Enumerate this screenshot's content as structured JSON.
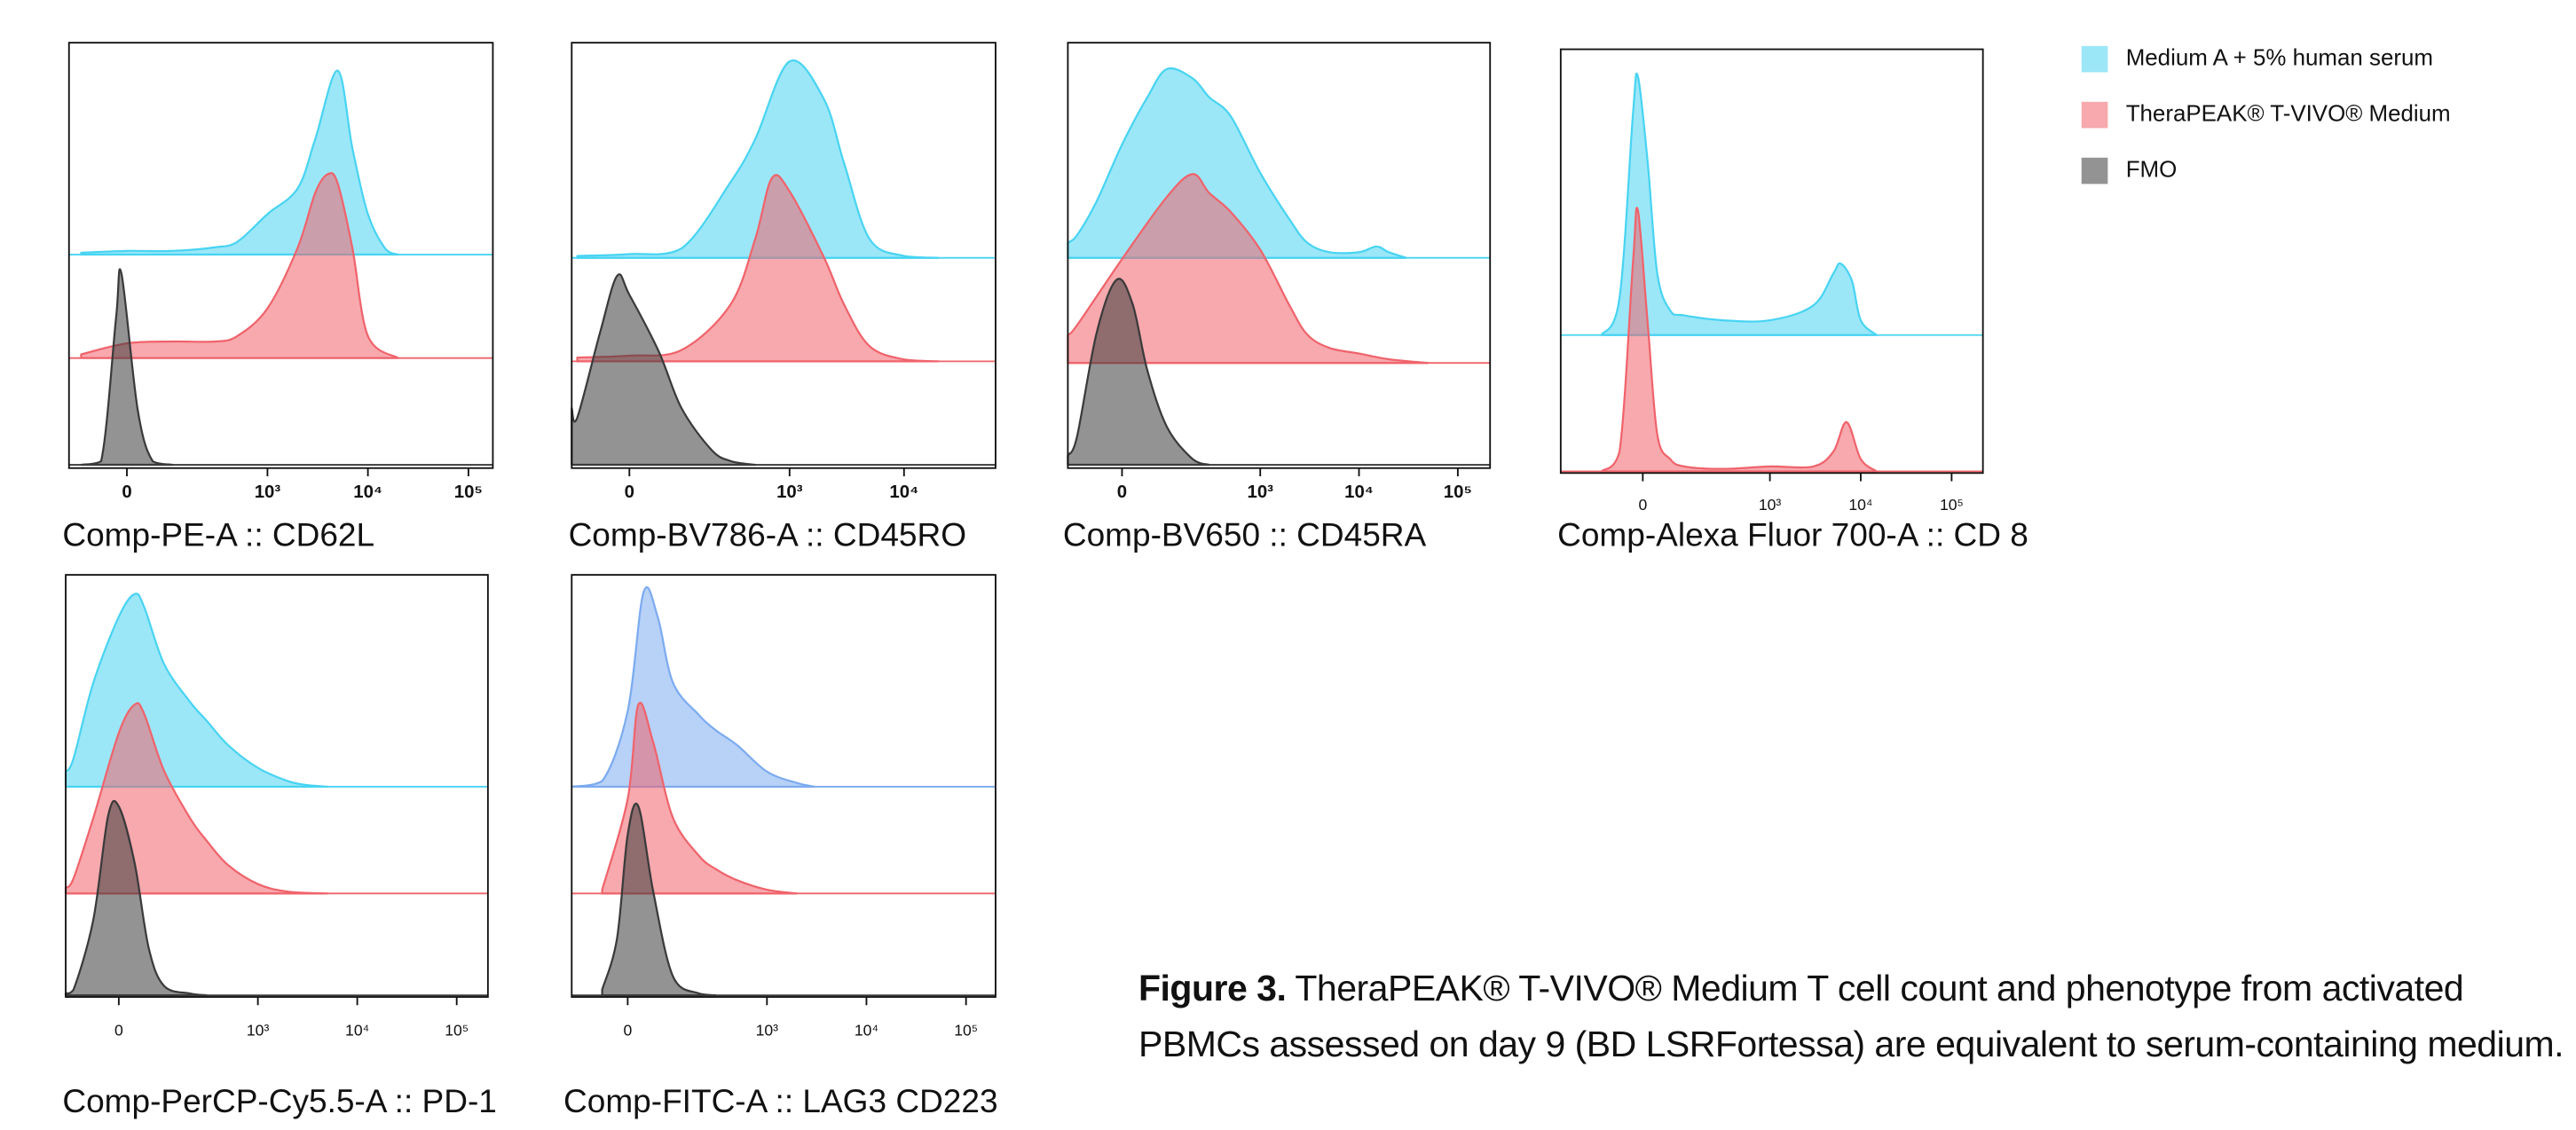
{
  "chart_data": [
    {
      "type": "density",
      "xlabel": "Comp-PE-A :: CD62L",
      "x_scale": "biexponential",
      "xlim": [
        -140,
        175000
      ],
      "ylim": [
        0,
        100
      ],
      "xticks": [
        0,
        {
          "value": 1000,
          "label": "10³"
        },
        {
          "value": 10000,
          "label": "10⁴"
        },
        {
          "value": 100000,
          "label": "10⁵"
        }
      ],
      "series": [
        {
          "color": "#48d4f2",
          "x": [
            -100,
            0,
            100,
            300,
            500,
            1000,
            2000,
            3000,
            5000,
            7000,
            10000,
            15000,
            20000
          ],
          "values": [
            1,
            2,
            2,
            4,
            7,
            22,
            36,
            63,
            100,
            58,
            22,
            3,
            0
          ]
        },
        {
          "color": "#f0636b",
          "x": [
            -100,
            0,
            100,
            300,
            500,
            1000,
            2000,
            3000,
            4000,
            5000,
            7000,
            10000,
            20000
          ],
          "values": [
            2,
            8,
            9,
            9,
            12,
            27,
            60,
            90,
            100,
            95,
            60,
            12,
            0
          ]
        },
        {
          "color": "#3a3a3a",
          "x": [
            -100,
            -50,
            -20,
            -10,
            20,
            50,
            100
          ],
          "values": [
            0,
            2,
            80,
            104,
            30,
            2,
            0
          ]
        }
      ]
    },
    {
      "type": "density",
      "xlabel": "Comp-BV786-A :: CD45RO",
      "x_scale": "biexponential",
      "xlim": [
        -115,
        63000
      ],
      "ylim": [
        0,
        100
      ],
      "xticks": [
        0,
        {
          "value": 1000,
          "label": "10³"
        },
        {
          "value": 10000,
          "label": "10⁴"
        }
      ],
      "series": [
        {
          "color": "#48d4f2",
          "x": [
            -100,
            0,
            100,
            300,
            500,
            1000,
            2000,
            3000,
            5000,
            10000,
            20000
          ],
          "values": [
            1,
            2,
            5,
            40,
            63,
            104,
            84,
            50,
            10,
            1,
            0
          ]
        },
        {
          "color": "#f0636b",
          "x": [
            -100,
            0,
            100,
            300,
            500,
            700,
            1000,
            2000,
            3000,
            5000,
            10000,
            20000
          ],
          "values": [
            2,
            3,
            6,
            30,
            65,
            97,
            90,
            55,
            30,
            8,
            1,
            0
          ]
        },
        {
          "color": "#3a3a3a",
          "x": [
            -115,
            -100,
            -50,
            -20,
            0,
            50,
            100,
            200,
            300,
            500
          ],
          "values": [
            30,
            25,
            70,
            100,
            90,
            60,
            30,
            8,
            2,
            0
          ]
        }
      ]
    },
    {
      "type": "density",
      "xlabel": "Comp-BV650 :: CD45RA",
      "x_scale": "biexponential",
      "xlim": [
        -130,
        212000
      ],
      "ylim": [
        0,
        100
      ],
      "xticks": [
        0,
        {
          "value": 1000,
          "label": "10³"
        },
        {
          "value": 10000,
          "label": "10⁴"
        },
        {
          "value": 100000,
          "label": "10⁵"
        }
      ],
      "series": [
        {
          "color": "#48d4f2",
          "x": [
            -130,
            -100,
            -50,
            0,
            50,
            100,
            200,
            300,
            500,
            1000,
            2000,
            3000,
            5000,
            10000,
            15000,
            20000,
            30000
          ],
          "values": [
            8,
            12,
            30,
            60,
            85,
            100,
            95,
            85,
            75,
            45,
            20,
            8,
            3,
            3,
            6,
            3,
            0
          ]
        },
        {
          "color": "#f0636b",
          "x": [
            -130,
            -100,
            0,
            100,
            200,
            300,
            500,
            1000,
            2000,
            3000,
            5000,
            10000,
            20000,
            50000
          ],
          "values": [
            15,
            20,
            55,
            88,
            100,
            90,
            80,
            60,
            30,
            15,
            8,
            5,
            2,
            0
          ]
        },
        {
          "color": "#3a3a3a",
          "x": [
            -130,
            -100,
            -50,
            -10,
            20,
            50,
            100,
            200,
            300
          ],
          "values": [
            5,
            15,
            70,
            98,
            85,
            50,
            20,
            3,
            0
          ]
        }
      ]
    },
    {
      "type": "density",
      "xlabel": "Comp-Alexa Fluor 700-A :: CD 8",
      "x_scale": "biexponential",
      "xlim": [
        -315,
        221000
      ],
      "ylim": [
        0,
        100
      ],
      "xticks": [
        0,
        {
          "value": 1000,
          "label": "10³"
        },
        {
          "value": 10000,
          "label": "10⁴"
        },
        {
          "value": 100000,
          "label": "10⁵"
        }
      ],
      "series": [
        {
          "color": "#48d4f2",
          "x": [
            -100,
            -50,
            -20,
            -10,
            10,
            30,
            60,
            100,
            300,
            1000,
            3000,
            5000,
            6000,
            8000,
            10000,
            15000
          ],
          "values": [
            0,
            15,
            90,
            105,
            70,
            25,
            10,
            8,
            6,
            6,
            12,
            25,
            29,
            22,
            6,
            0
          ]
        },
        {
          "color": "#f0636b",
          "x": [
            -100,
            -50,
            -20,
            -10,
            10,
            30,
            60,
            100,
            300,
            1000,
            3000,
            5000,
            7000,
            10000,
            15000
          ],
          "values": [
            0,
            8,
            85,
            106,
            60,
            15,
            5,
            2,
            1,
            2,
            2,
            8,
            20,
            5,
            0
          ]
        }
      ]
    },
    {
      "type": "density",
      "xlabel": "Comp-PerCP-Cy5.5-A :: PD-1",
      "x_scale": "biexponential",
      "xlim": [
        -125,
        206000
      ],
      "ylim": [
        0,
        100
      ],
      "xticks": [
        0,
        {
          "value": 1000,
          "label": "10³"
        },
        {
          "value": 10000,
          "label": "10⁴"
        },
        {
          "value": 100000,
          "label": "10⁵"
        }
      ],
      "series": [
        {
          "color": "#48d4f2",
          "x": [
            -125,
            -100,
            -50,
            0,
            30,
            50,
            100,
            200,
            300,
            500,
            1000,
            2000,
            3000,
            5000
          ],
          "values": [
            8,
            15,
            55,
            90,
            102,
            95,
            65,
            45,
            35,
            22,
            10,
            3,
            1,
            0
          ]
        },
        {
          "color": "#f0636b",
          "x": [
            -125,
            -100,
            -50,
            0,
            30,
            50,
            100,
            200,
            300,
            500,
            1000,
            2000,
            5000
          ],
          "values": [
            3,
            8,
            40,
            85,
            100,
            95,
            65,
            40,
            28,
            15,
            5,
            1,
            0
          ]
        },
        {
          "color": "#3a3a3a",
          "x": [
            -125,
            -100,
            -50,
            -20,
            0,
            30,
            60,
            100,
            200,
            300
          ],
          "values": [
            1,
            3,
            40,
            95,
            100,
            70,
            25,
            5,
            1,
            0
          ]
        }
      ]
    },
    {
      "type": "density",
      "xlabel": "Comp-FITC-A :: LAG3 CD223",
      "x_scale": "biexponential",
      "xlim": [
        -135,
        198000
      ],
      "ylim": [
        0,
        100
      ],
      "xticks": [
        0,
        {
          "value": 1000,
          "label": "10³"
        },
        {
          "value": 10000,
          "label": "10⁴"
        },
        {
          "value": 100000,
          "label": "10⁵"
        }
      ],
      "series": [
        {
          "color": "#7cabf0",
          "x": [
            -135,
            -50,
            0,
            30,
            60,
            100,
            200,
            300,
            500,
            1000,
            2000,
            3000
          ],
          "values": [
            0,
            3,
            40,
            103,
            90,
            55,
            38,
            30,
            22,
            8,
            2,
            0
          ]
        },
        {
          "color": "#f0636b",
          "x": [
            -50,
            0,
            20,
            50,
            100,
            200,
            300,
            500,
            1000,
            2000
          ],
          "values": [
            2,
            50,
            100,
            80,
            40,
            20,
            13,
            7,
            2,
            0
          ]
        },
        {
          "color": "#3a3a3a",
          "x": [
            -50,
            -20,
            0,
            20,
            50,
            100,
            200,
            300
          ],
          "values": [
            3,
            30,
            85,
            100,
            55,
            10,
            1,
            0
          ]
        }
      ]
    }
  ],
  "legend": [
    {
      "name": "Medium A + 5% human serum",
      "color": "#48d4f2"
    },
    {
      "name": "TheraPEAK® T-VIVO® Medium",
      "color": "#f0636b"
    },
    {
      "name": "FMO",
      "color": "#3a3a3a"
    }
  ],
  "caption": {
    "label": "Figure 3.",
    "text": "TheraPEAK® T-VIVO® Medium T cell count and phenotype from activated PBMCs assessed on day 9 (BD LSRFortessa) are equivalent to serum-containing medium."
  }
}
